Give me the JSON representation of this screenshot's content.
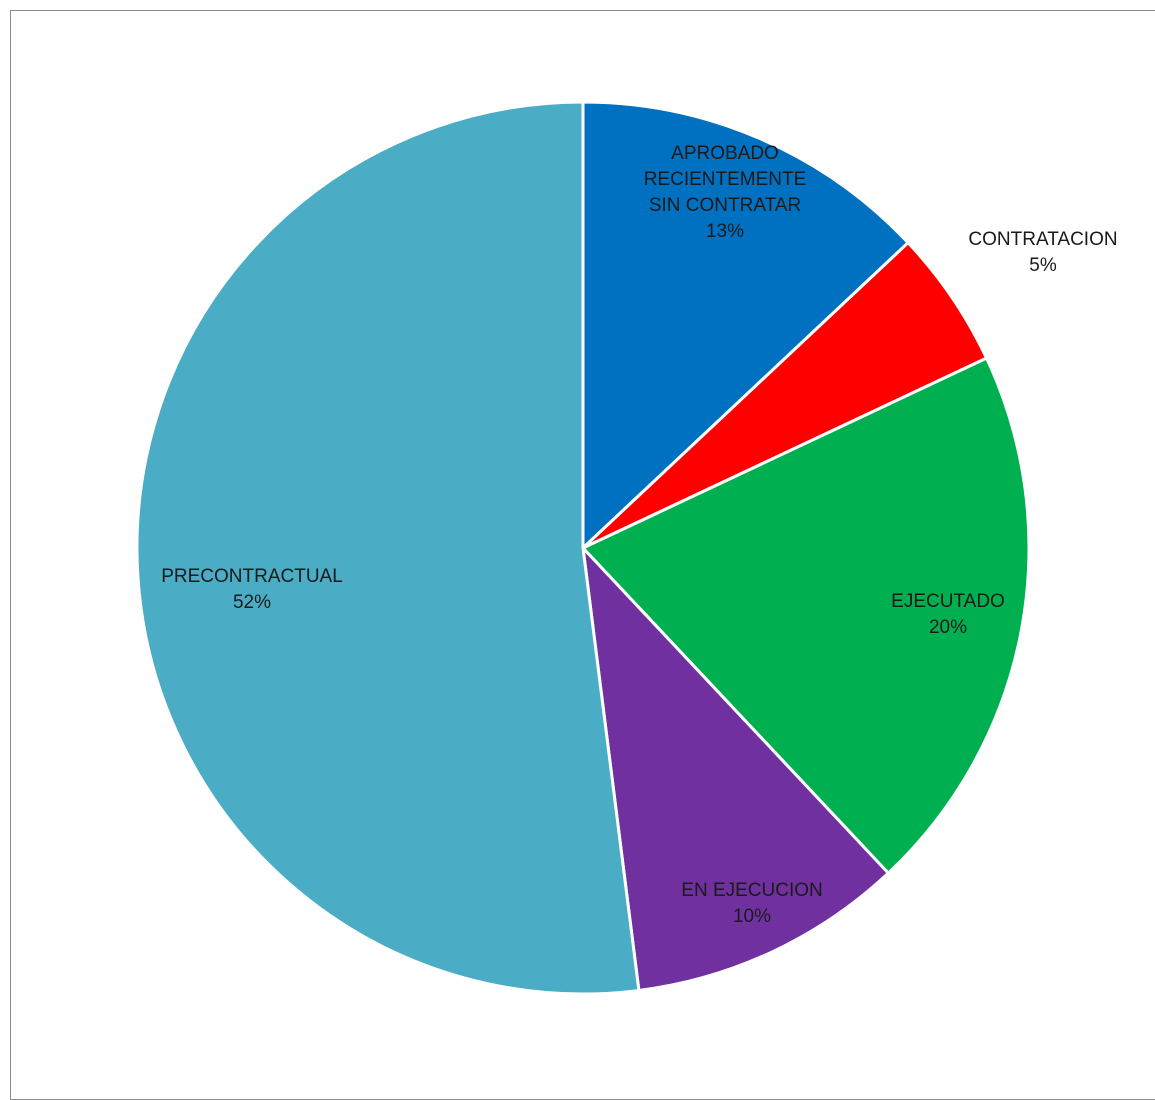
{
  "chart_data": {
    "type": "pie",
    "title": "",
    "start_angle_deg": 0,
    "direction": "clockwise",
    "slices": [
      {
        "label_lines": [
          "APROBADO",
          "RECIENTEMENTE",
          "SIN CONTRATAR"
        ],
        "percent_label": "13%",
        "value": 13,
        "color": "#0070C0"
      },
      {
        "label_lines": [
          "CONTRATACION"
        ],
        "percent_label": "5%",
        "value": 5,
        "color": "#FF0000"
      },
      {
        "label_lines": [
          "EJECUTADO"
        ],
        "percent_label": "20%",
        "value": 20,
        "color": "#00B050"
      },
      {
        "label_lines": [
          "EN EJECUCION"
        ],
        "percent_label": "10%",
        "value": 10,
        "color": "#7030A0"
      },
      {
        "label_lines": [
          "PRECONTRACTUAL"
        ],
        "percent_label": "52%",
        "value": 52,
        "color": "#4BACC6"
      }
    ]
  }
}
